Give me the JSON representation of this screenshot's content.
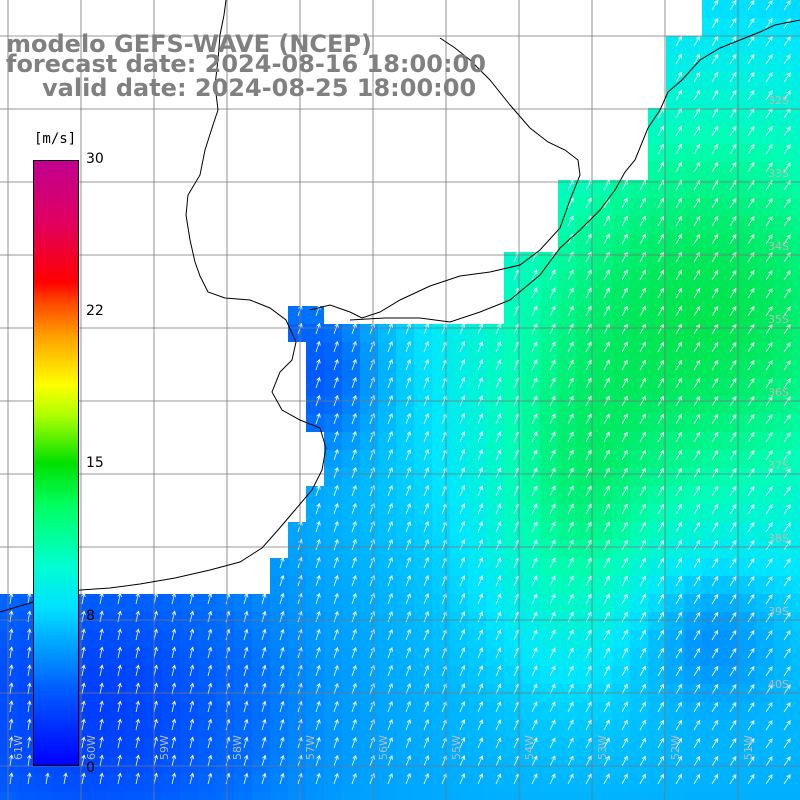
{
  "title": {
    "line1": "modelo GEFS-WAVE (NCEP)",
    "line2": "forecast date: 2024-08-16 18:00:00",
    "line3": "valid date: 2024-08-25 18:00:00"
  },
  "legend": {
    "unit": "[m/s]",
    "ticks": [
      "30",
      "22",
      "15",
      "8",
      "0"
    ],
    "tick_values": [
      30,
      22,
      15,
      8,
      0
    ],
    "range": [
      0,
      30
    ]
  },
  "axes": {
    "longitude_labels": [
      "61W",
      "60W",
      "59W",
      "58W",
      "57W",
      "56W",
      "55W",
      "54W",
      "53W",
      "52W",
      "51W"
    ],
    "latitude_labels": [
      "32S",
      "33S",
      "34S",
      "35S",
      "36S",
      "37S",
      "38S",
      "39S",
      "40S"
    ]
  },
  "colors": {
    "land": "#ffffff",
    "coast": "#000000",
    "grid": "#777777",
    "arrow": "#ffffff",
    "title_text": "#808080"
  }
}
